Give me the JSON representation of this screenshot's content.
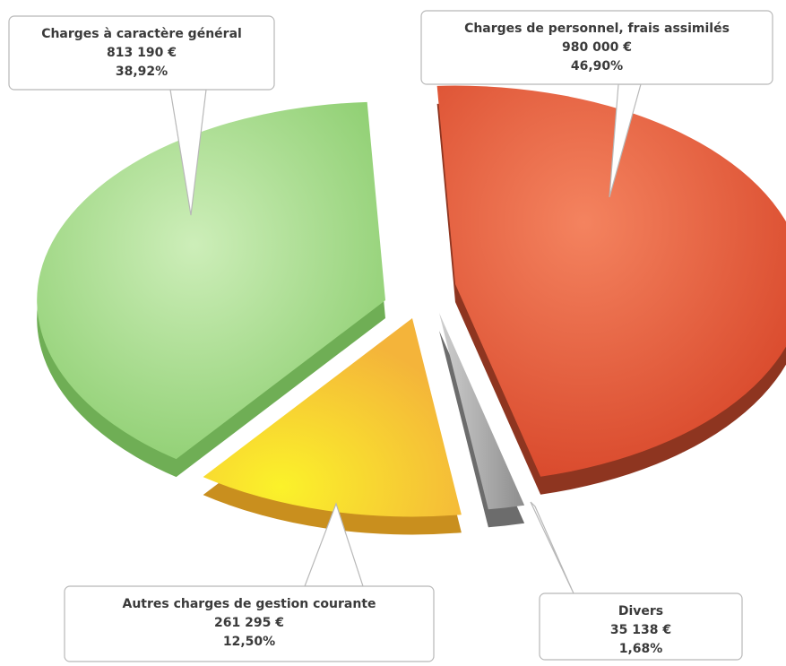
{
  "chart_data": {
    "type": "pie",
    "title": "",
    "slices": [
      {
        "label": "Charges de personnel, frais assimilés",
        "value_text": "980 000 €",
        "value": 980000,
        "percent": 46.9,
        "percent_text": "46,90%",
        "color": "#E2593A"
      },
      {
        "label": "Divers",
        "value_text": "35 138 €",
        "value": 35138,
        "percent": 1.68,
        "percent_text": "1,68%",
        "color": "#9a9a9a"
      },
      {
        "label": "Autres charges de gestion courante",
        "value_text": "261 295 €",
        "value": 261295,
        "percent": 12.5,
        "percent_text": "12,50%",
        "color": "#F6C531"
      },
      {
        "label": "Charges à caractère général",
        "value_text": "813 190 €",
        "value": 813190,
        "percent": 38.92,
        "percent_text": "38,92%",
        "color": "#A6D98A"
      }
    ]
  }
}
